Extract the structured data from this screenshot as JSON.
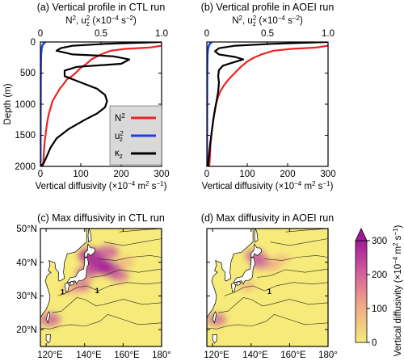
{
  "colors": {
    "n2": "#ee2222",
    "uz2": "#1f3fe6",
    "kappa": "#000000",
    "map_low": "#f6eb7a",
    "map_mid": "#f0a087",
    "map_high": "#a01a9a",
    "land": "#ffffff",
    "legend_bg": "#d9d9d9"
  },
  "chart_data": [
    {
      "type": "line",
      "panel": "a",
      "title": "(a) Vertical profile in CTL run",
      "top_axis_label": "N², u_z² (×10⁻⁴ s⁻²)",
      "top_axis_label_parts": [
        "N",
        "2",
        ", u",
        "z",
        "2",
        " (×10",
        "−4",
        " s",
        "−2",
        ")"
      ],
      "top_ticks": [
        "0",
        "0.5",
        "1.0"
      ],
      "top_range": [
        0,
        1.0
      ],
      "bottom_axis_label": "Vertical diffusivity (×10⁻⁴ m² s⁻¹)",
      "bottom_axis_label_parts": [
        "Vertical diffusivity (×10",
        "−4",
        " m",
        "2",
        " s",
        "−1",
        ")"
      ],
      "bottom_ticks": [
        "0",
        "100",
        "200",
        "300"
      ],
      "bottom_range": [
        0,
        300
      ],
      "ylabel": "Depth (m)",
      "y_ticks": [
        "0",
        "500",
        "1000",
        "1500",
        "2000"
      ],
      "y_range": [
        0,
        2000
      ],
      "y_inverted": true,
      "legend": [
        "N²",
        "u_z²",
        "κ_z"
      ],
      "legend_parts": [
        [
          "N",
          "2",
          ""
        ],
        [
          "u",
          "2",
          "z"
        ],
        [
          "κ",
          "",
          "z"
        ]
      ],
      "legend_placement": "bottom-right",
      "series": [
        {
          "name": "N²",
          "axis": "top",
          "x": [
            1.0,
            0.9,
            0.7,
            0.58,
            0.5,
            0.42,
            0.38,
            0.33,
            0.29,
            0.26,
            0.22,
            0.19,
            0.16,
            0.13,
            0.1,
            0.085,
            0.07,
            0.055,
            0.045,
            0.035,
            0.03,
            0.025,
            0.02
          ],
          "y": [
            60,
            90,
            110,
            140,
            200,
            280,
            350,
            420,
            500,
            550,
            600,
            680,
            750,
            850,
            950,
            1050,
            1150,
            1300,
            1450,
            1600,
            1750,
            1900,
            2000
          ]
        },
        {
          "name": "u_z²",
          "axis": "top",
          "x": [
            0.04,
            0.02,
            0.01,
            0.005,
            0.003,
            0.002,
            0.0015,
            0.001
          ],
          "y": [
            0,
            40,
            100,
            200,
            500,
            1000,
            1500,
            2000
          ]
        },
        {
          "name": "κ_z",
          "axis": "bottom",
          "x": [
            300,
            160,
            80,
            50,
            40,
            80,
            180,
            220,
            200,
            90,
            60,
            60,
            100,
            140,
            160,
            165,
            160,
            140,
            110,
            70,
            40,
            25,
            15,
            8,
            0
          ],
          "y": [
            0,
            30,
            60,
            100,
            140,
            200,
            230,
            280,
            350,
            400,
            460,
            550,
            650,
            750,
            850,
            950,
            1050,
            1150,
            1250,
            1400,
            1550,
            1700,
            1850,
            1950,
            2000
          ]
        }
      ]
    },
    {
      "type": "line",
      "panel": "b",
      "title": "(b) Vertical profile in AOEI run",
      "top_axis_label": "N², u_z² (×10⁻⁴ s⁻²)",
      "top_axis_label_parts": [
        "N",
        "2",
        ", u",
        "z",
        "2",
        " (×10",
        "−4",
        " s",
        "−2",
        ")"
      ],
      "top_ticks": [
        "0",
        "0.5",
        "1.0"
      ],
      "top_range": [
        0,
        1.0
      ],
      "bottom_axis_label": "Vertical diffusivity (×10⁻⁴ m² s⁻¹)",
      "bottom_axis_label_parts": [
        "Vertical diffusivity (×10",
        "−4",
        " m",
        "2",
        " s",
        "−1",
        ")"
      ],
      "bottom_ticks": [
        "0",
        "100",
        "200",
        "300"
      ],
      "bottom_range": [
        0,
        300
      ],
      "y_range": [
        0,
        2000
      ],
      "y_inverted": true,
      "series": [
        {
          "name": "N²",
          "axis": "top",
          "x": [
            1.0,
            0.9,
            0.7,
            0.55,
            0.45,
            0.38,
            0.33,
            0.28,
            0.23,
            0.18,
            0.14,
            0.11,
            0.09,
            0.075,
            0.06,
            0.05,
            0.04,
            0.03,
            0.025,
            0.02
          ],
          "y": [
            60,
            90,
            110,
            140,
            200,
            260,
            320,
            400,
            500,
            600,
            700,
            800,
            900,
            1000,
            1150,
            1300,
            1450,
            1650,
            1850,
            2000
          ]
        },
        {
          "name": "u_z²",
          "axis": "top",
          "x": [
            0.04,
            0.02,
            0.01,
            0.005,
            0.003,
            0.002,
            0.0015,
            0.001
          ],
          "y": [
            0,
            40,
            100,
            200,
            500,
            1000,
            1500,
            2000
          ]
        },
        {
          "name": "κ_z",
          "axis": "bottom",
          "x": [
            300,
            160,
            70,
            30,
            20,
            30,
            70,
            90,
            70,
            40,
            30,
            28,
            30,
            28,
            24,
            20,
            16,
            12,
            8,
            5,
            3
          ],
          "y": [
            0,
            30,
            60,
            100,
            150,
            200,
            240,
            280,
            320,
            380,
            450,
            550,
            650,
            800,
            950,
            1100,
            1250,
            1450,
            1650,
            1850,
            2000
          ]
        }
      ]
    },
    {
      "type": "heatmap",
      "panel": "c",
      "title": "(c) Max diffusivity in CTL run",
      "x_ticks": [
        "120°E",
        "140°E",
        "160°E",
        "180°"
      ],
      "x_range": [
        117,
        180
      ],
      "y_ticks": [
        "20°N",
        "30°N",
        "40°N",
        "50°N"
      ],
      "y_range": [
        15,
        50
      ],
      "contour_labels": [
        "1",
        "1"
      ],
      "hotspots": [
        {
          "lon": 147,
          "lat": 39,
          "intensity": 0.95
        },
        {
          "lon": 143,
          "lat": 42,
          "intensity": 0.9
        },
        {
          "lon": 153,
          "lat": 38,
          "intensity": 0.8
        },
        {
          "lon": 152,
          "lat": 43,
          "intensity": 0.75
        },
        {
          "lon": 158,
          "lat": 36,
          "intensity": 0.6
        },
        {
          "lon": 138,
          "lat": 33,
          "intensity": 0.6
        },
        {
          "lon": 133,
          "lat": 32,
          "intensity": 0.55
        },
        {
          "lon": 161,
          "lat": 40,
          "intensity": 0.5
        },
        {
          "lon": 122,
          "lat": 23,
          "intensity": 0.7
        },
        {
          "lon": 141,
          "lat": 37,
          "intensity": 0.7
        }
      ]
    },
    {
      "type": "heatmap",
      "panel": "d",
      "title": "(d) Max diffusivity in AOEI run",
      "x_ticks": [
        "120°E",
        "140°E",
        "160°E",
        "180°"
      ],
      "x_range": [
        117,
        180
      ],
      "y_ticks": [
        "20°N",
        "30°N",
        "40°N",
        "50°N"
      ],
      "y_range": [
        15,
        50
      ],
      "contour_labels": [
        "1"
      ],
      "hotspots": [
        {
          "lon": 145,
          "lat": 40,
          "intensity": 0.7
        },
        {
          "lon": 142,
          "lat": 42,
          "intensity": 0.65
        },
        {
          "lon": 151,
          "lat": 39,
          "intensity": 0.5
        },
        {
          "lon": 138,
          "lat": 33,
          "intensity": 0.45
        },
        {
          "lon": 156,
          "lat": 41,
          "intensity": 0.35
        },
        {
          "lon": 122,
          "lat": 23,
          "intensity": 0.6
        }
      ]
    }
  ],
  "colorbar": {
    "label": "Vertical diffusivity (×10⁻⁴ m² s⁻¹)",
    "label_parts": [
      "Vertical diffusivity (×10",
      "−4",
      " m",
      "2",
      " s",
      "−1",
      ")"
    ],
    "ticks": [
      "0",
      "100",
      "200",
      "300"
    ],
    "range": [
      0,
      300
    ],
    "extend": "max"
  }
}
